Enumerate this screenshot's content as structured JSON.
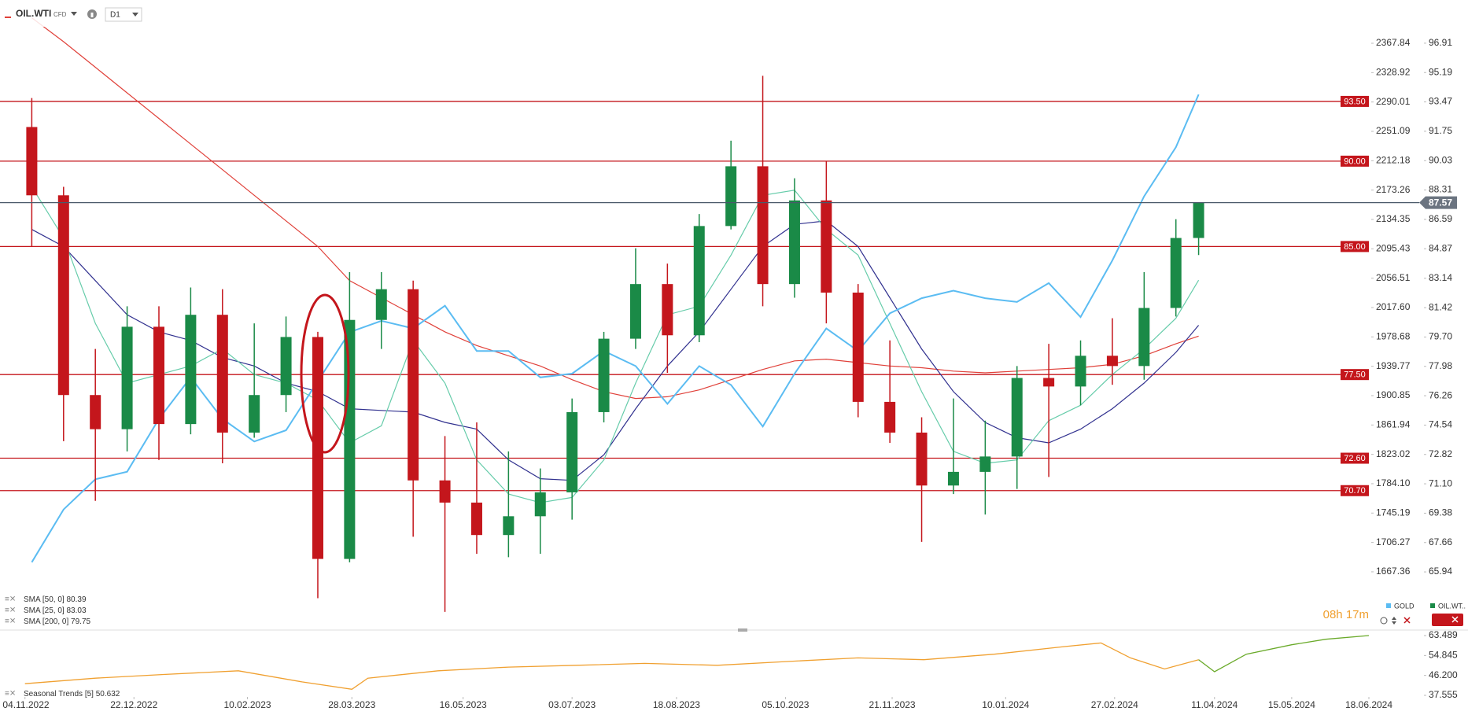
{
  "header": {
    "symbol": "OIL.WTI",
    "instrument_type": "CFD",
    "timeframe": "D1",
    "timer": "08h 17m"
  },
  "chart_data": [
    {
      "type": "candlestick",
      "x": [
        "07.11.2022",
        "21.11.2022",
        "05.12.2022",
        "19.12.2022",
        "02.01.2023",
        "16.01.2023",
        "30.01.2023",
        "13.02.2023",
        "27.02.2023",
        "13.03.2023",
        "27.03.2023",
        "10.04.2023",
        "24.04.2023",
        "08.05.2023",
        "22.05.2023",
        "05.06.2023",
        "19.06.2023",
        "03.07.2023",
        "17.07.2023",
        "31.07.2023",
        "14.08.2023",
        "28.08.2023",
        "11.09.2023",
        "25.09.2023",
        "09.10.2023",
        "23.10.2023",
        "06.11.2023",
        "20.11.2023",
        "04.12.2023",
        "18.12.2023",
        "01.01.2024",
        "15.01.2024",
        "29.01.2024",
        "12.02.2024",
        "26.02.2024",
        "11.03.2024",
        "25.03.2024",
        "04.04.2024"
      ],
      "xlim": [
        "24.10.2022",
        "18.06.2024"
      ],
      "xticks": [
        "04.11.2022",
        "22.12.2022",
        "10.02.2023",
        "28.03.2023",
        "16.05.2023",
        "03.07.2023",
        "18.08.2023",
        "05.10.2023",
        "21.11.2023",
        "10.01.2024",
        "27.02.2024",
        "11.04.2024",
        "15.05.2024",
        "18.06.2024"
      ],
      "ylim": [
        62.58,
        99.44
      ],
      "yticks": [
        96.91,
        95.19,
        93.47,
        91.75,
        90.03,
        88.31,
        86.59,
        84.87,
        83.14,
        81.42,
        {
          "value": 79.7,
          "label": "79.70"
        },
        77.98,
        76.26,
        74.54,
        72.82,
        {
          "value": 71.1,
          "label": "71.10"
        },
        69.38,
        67.66,
        65.94
      ],
      "y2lim": [
        1591.2,
        2425.2
      ],
      "y2ticks": [
        2367.84,
        2328.92,
        2290.01,
        2251.09,
        2212.18,
        2173.26,
        2134.35,
        2095.43,
        2056.51,
        {
          "value": 2017.6,
          "label": "2017.60"
        },
        1978.68,
        1939.77,
        1900.85,
        1861.94,
        1823.02,
        {
          "value": 1784.1,
          "label": "1784.10"
        },
        1745.19,
        1706.27,
        1667.36
      ],
      "grid": false,
      "series": [
        {
          "name": "OIL.WT..",
          "color": "#1a8a47",
          "down_color": "#c4161c",
          "open": [
            92.0,
            88.0,
            76.3,
            74.3,
            80.3,
            74.6,
            81.0,
            74.1,
            76.3,
            79.7,
            66.7,
            80.7,
            82.5,
            71.3,
            70.0,
            68.1,
            69.2,
            70.6,
            75.3,
            79.6,
            82.8,
            79.8,
            86.2,
            89.7,
            82.8,
            87.7,
            82.3,
            75.9,
            74.1,
            71.0,
            71.8,
            72.7,
            77.3,
            76.8,
            78.6,
            78.0,
            81.4,
            85.5
          ],
          "high": [
            93.7,
            88.5,
            79.0,
            81.5,
            81.5,
            82.6,
            82.5,
            80.5,
            80.9,
            80.0,
            83.5,
            83.5,
            83.0,
            73.9,
            74.7,
            73.0,
            72.0,
            76.1,
            80.0,
            84.9,
            84.0,
            86.9,
            91.2,
            95.0,
            89.0,
            90.0,
            82.8,
            79.5,
            75.0,
            76.1,
            74.8,
            78.0,
            79.3,
            79.5,
            80.8,
            83.5,
            86.6,
            87.6
          ],
          "low": [
            85.0,
            73.6,
            70.1,
            73.0,
            72.5,
            74.0,
            72.3,
            73.8,
            75.3,
            64.4,
            66.5,
            79.0,
            68.0,
            63.6,
            67.0,
            66.8,
            67.0,
            69.0,
            74.7,
            79.0,
            77.6,
            79.4,
            86.0,
            81.5,
            82.0,
            80.5,
            75.0,
            73.5,
            67.7,
            70.5,
            69.3,
            70.8,
            71.5,
            75.7,
            76.9,
            77.2,
            80.9,
            84.5
          ],
          "close": [
            88.0,
            76.3,
            74.3,
            80.3,
            74.6,
            81.0,
            74.1,
            76.3,
            79.7,
            66.7,
            80.7,
            82.5,
            71.3,
            70.0,
            68.1,
            69.2,
            70.6,
            75.3,
            79.6,
            82.8,
            79.8,
            86.2,
            89.7,
            82.8,
            87.7,
            82.3,
            75.9,
            74.1,
            71.0,
            71.8,
            72.7,
            77.3,
            76.8,
            78.6,
            78.0,
            81.4,
            85.5,
            87.57
          ]
        },
        {
          "name": "GOLD",
          "color": "#5bbcf2",
          "axis": "y2",
          "values": [
            1680,
            1750,
            1790,
            1800,
            1870,
            1925,
            1870,
            1840,
            1855,
            1920,
            1985,
            2000,
            1990,
            2020,
            1960,
            1960,
            1925,
            1930,
            1960,
            1940,
            1890,
            1940,
            1915,
            1860,
            1930,
            1990,
            1960,
            2010,
            2030,
            2040,
            2030,
            2025,
            2050,
            2005,
            2080,
            2165,
            2230,
            2300
          ]
        },
        {
          "name": "SMA [50, 0]",
          "color": "#31318f",
          "values": [
            86.0,
            85.0,
            83.0,
            81.0,
            80.0,
            79.5,
            78.5,
            78.0,
            77.0,
            76.5,
            75.5,
            75.4,
            75.3,
            74.7,
            74.3,
            72.5,
            71.4,
            71.3,
            72.8,
            75.5,
            78.0,
            80.0,
            82.5,
            85.0,
            86.3,
            86.5,
            85.0,
            82.0,
            79.0,
            76.5,
            74.7,
            73.8,
            73.5,
            74.3,
            75.5,
            77.0,
            78.8,
            80.39
          ]
        },
        {
          "name": "SMA [25, 0]",
          "color": "#66ccaa",
          "values": [
            88.5,
            85.5,
            80.5,
            77.0,
            77.5,
            78.0,
            79.0,
            77.5,
            77.0,
            76.0,
            73.5,
            74.5,
            79.5,
            77.0,
            72.5,
            70.5,
            70.0,
            70.3,
            72.5,
            77.0,
            81.0,
            81.5,
            84.5,
            88.0,
            88.3,
            86.0,
            84.5,
            80.5,
            76.5,
            73.0,
            72.3,
            72.5,
            74.8,
            75.7,
            77.5,
            79.0,
            80.8,
            83.03
          ]
        },
        {
          "name": "SMA [200, 0]",
          "color": "#e0413a",
          "values": [
            98.4,
            97.0,
            95.5,
            94.0,
            92.5,
            91.0,
            89.5,
            88.0,
            86.5,
            85.0,
            83.0,
            82.0,
            81.0,
            80.0,
            79.2,
            78.6,
            78.0,
            77.2,
            76.5,
            76.1,
            76.2,
            76.6,
            77.2,
            77.8,
            78.3,
            78.4,
            78.2,
            78.0,
            77.9,
            77.7,
            77.6,
            77.7,
            77.8,
            77.9,
            78.1,
            78.6,
            79.3,
            79.75
          ]
        }
      ],
      "levels": [
        {
          "value": 93.5,
          "label": "93.50"
        },
        {
          "value": 90,
          "label": "90.00"
        },
        {
          "value": 85,
          "label": "85.00"
        },
        {
          "value": 77.5,
          "label": "77.50"
        },
        {
          "value": 72.6,
          "label": "72.60"
        },
        {
          "value": 70.7,
          "label": "70.70"
        }
      ],
      "level_color": "#c4161c",
      "last_price": 87.57
    },
    {
      "type": "line",
      "x": [
        "04.11.2022",
        "05.12.2022",
        "04.01.2023",
        "06.02.2023",
        "06.03.2023",
        "28.03.2023",
        "04.04.2023",
        "05.05.2023",
        "05.06.2023",
        "05.07.2023",
        "04.08.2023",
        "05.09.2023",
        "05.10.2023",
        "06.11.2023",
        "05.12.2023",
        "05.01.2024",
        "05.02.2024",
        "21.02.2024",
        "05.03.2024",
        "20.03.2024",
        "04.04.2024",
        "11.04.2024",
        "25.04.2024",
        "15.05.2024",
        "30.05.2024",
        "18.06.2024"
      ],
      "xlim": [
        "24.10.2022",
        "18.06.2024"
      ],
      "ylim": [
        35.51,
        65.54
      ],
      "yticks": [
        63.489,
        54.845,
        {
          "value": 46.2,
          "label": "46.200"
        },
        37.555
      ],
      "series": [
        {
          "name": "Seasonal Trends [5]",
          "last_value": 50.632,
          "color": "#f0a030",
          "values": [
            42.6,
            45.0,
            46.6,
            48.2,
            43.4,
            40.2,
            45.0,
            48.2,
            49.8,
            50.6,
            51.4,
            50.6,
            52.2,
            53.8,
            53.0,
            55.4,
            58.7,
            60.3,
            53.8,
            49.0,
            53.0,
            null,
            null,
            null,
            null,
            null
          ]
        },
        {
          "color": "#6aaa2a",
          "values": [
            null,
            null,
            null,
            null,
            null,
            null,
            null,
            null,
            null,
            null,
            null,
            null,
            null,
            null,
            null,
            null,
            null,
            null,
            null,
            null,
            53.0,
            47.8,
            55.4,
            59.5,
            61.9,
            63.5
          ]
        }
      ]
    }
  ]
}
